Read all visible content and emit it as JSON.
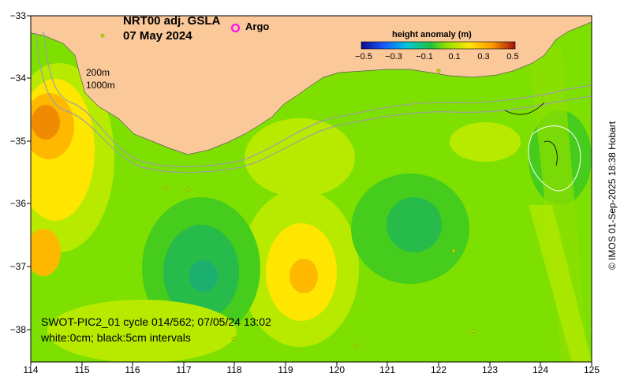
{
  "map": {
    "title_line1": "NRT00 adj. GSLA",
    "title_line2": "07 May 2024",
    "legend_argo": "Argo",
    "colorbar": {
      "title": "height anomaly (m)",
      "ticks": [
        "−0.5",
        "−0.3",
        "−0.1",
        "0.1",
        "0.3",
        "0.5"
      ],
      "range": [
        -0.5,
        0.5
      ]
    },
    "depth_labels": [
      "200m",
      "1000m"
    ],
    "x_ticks": [
      "114",
      "115",
      "116",
      "117",
      "118",
      "119",
      "120",
      "121",
      "122",
      "123",
      "124",
      "125"
    ],
    "y_ticks": [
      "−33",
      "−34",
      "−35",
      "−36",
      "−37",
      "−38"
    ],
    "info_line1": "SWOT-PIC2_01 cycle 014/562; 07/05/24 13:02",
    "info_line2": "white:0cm; black:5cm intervals",
    "credit": "© IMOS 01-Sep-2025 18:38 Hobart",
    "colors": {
      "land": "#fbc89a",
      "green": "#6ee000",
      "yellow_green": "#b8ea00",
      "yellow": "#ffe600",
      "orange": "#ffb800",
      "dark_orange": "#f08a00",
      "teal": "#1cb85c",
      "argo": "#ff00ff"
    }
  }
}
